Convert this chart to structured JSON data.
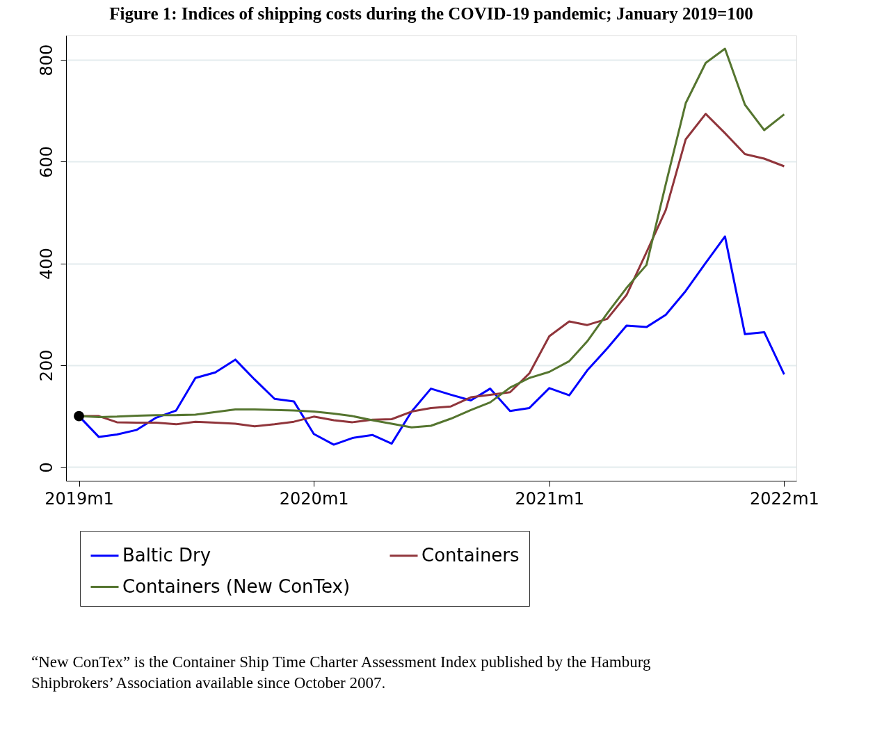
{
  "chart_data": {
    "type": "line",
    "title": "Figure 1: Indices of shipping costs during the COVID-19 pandemic; January 2019=100",
    "x": [
      "2019-01",
      "2019-02",
      "2019-03",
      "2019-04",
      "2019-05",
      "2019-06",
      "2019-07",
      "2019-08",
      "2019-09",
      "2019-10",
      "2019-11",
      "2019-12",
      "2020-01",
      "2020-02",
      "2020-03",
      "2020-04",
      "2020-05",
      "2020-06",
      "2020-07",
      "2020-08",
      "2020-09",
      "2020-10",
      "2020-11",
      "2020-12",
      "2021-01",
      "2021-02",
      "2021-03",
      "2021-04",
      "2021-05",
      "2021-06",
      "2021-07",
      "2021-08",
      "2021-09",
      "2021-10",
      "2021-11",
      "2021-12",
      "2022-01"
    ],
    "series": [
      {
        "name": "Baltic Dry",
        "color": "#0000ff",
        "values": [
          100,
          59,
          64,
          73,
          97,
          111,
          175,
          186,
          211,
          172,
          134,
          129,
          65,
          44,
          57,
          63,
          46,
          109,
          154,
          142,
          131,
          154,
          110,
          116,
          155,
          141,
          190,
          233,
          278,
          275,
          299,
          346,
          401,
          453,
          261,
          265,
          182
        ]
      },
      {
        "name": "Containers",
        "color": "#90353b",
        "values": [
          100,
          100,
          88,
          87,
          87,
          84,
          89,
          87,
          85,
          80,
          84,
          89,
          99,
          92,
          88,
          93,
          94,
          109,
          116,
          119,
          137,
          142,
          147,
          184,
          257,
          286,
          279,
          291,
          338,
          422,
          505,
          644,
          694,
          656,
          615,
          606,
          591
        ]
      },
      {
        "name": "Containers (New ConTex)",
        "color": "#55752f",
        "values": [
          100,
          98,
          99,
          101,
          102,
          102,
          103,
          108,
          113,
          113,
          112,
          111,
          109,
          105,
          100,
          92,
          85,
          78,
          81,
          95,
          112,
          127,
          156,
          175,
          187,
          208,
          247,
          302,
          352,
          397,
          556,
          715,
          794,
          822,
          712,
          662,
          693
        ]
      },
      {
        "type": "scatter",
        "marker": "circle",
        "color": "#000000",
        "x": [
          "2019-01"
        ],
        "values": [
          100
        ]
      }
    ],
    "marker": "none",
    "line_style": "solid",
    "xlim": [
      "2018-12-12",
      "2022-01-20"
    ],
    "xticks": [
      {
        "value": "2019-01",
        "label": "2019m1"
      },
      {
        "value": "2020-01",
        "label": "2020m1"
      },
      {
        "value": "2021-01",
        "label": "2021m1"
      },
      {
        "value": "2022-01",
        "label": "2022m1"
      }
    ],
    "ylim": [
      -27,
      848
    ],
    "yticks": [
      0,
      200,
      400,
      600,
      800
    ],
    "grid": "y",
    "legend": "bottom",
    "annotations": [
      "“New ConTex” is the Container Ship Time Charter Assessment Index published by the Hamburg Shipbrokers’ Association available since October 2007."
    ]
  }
}
